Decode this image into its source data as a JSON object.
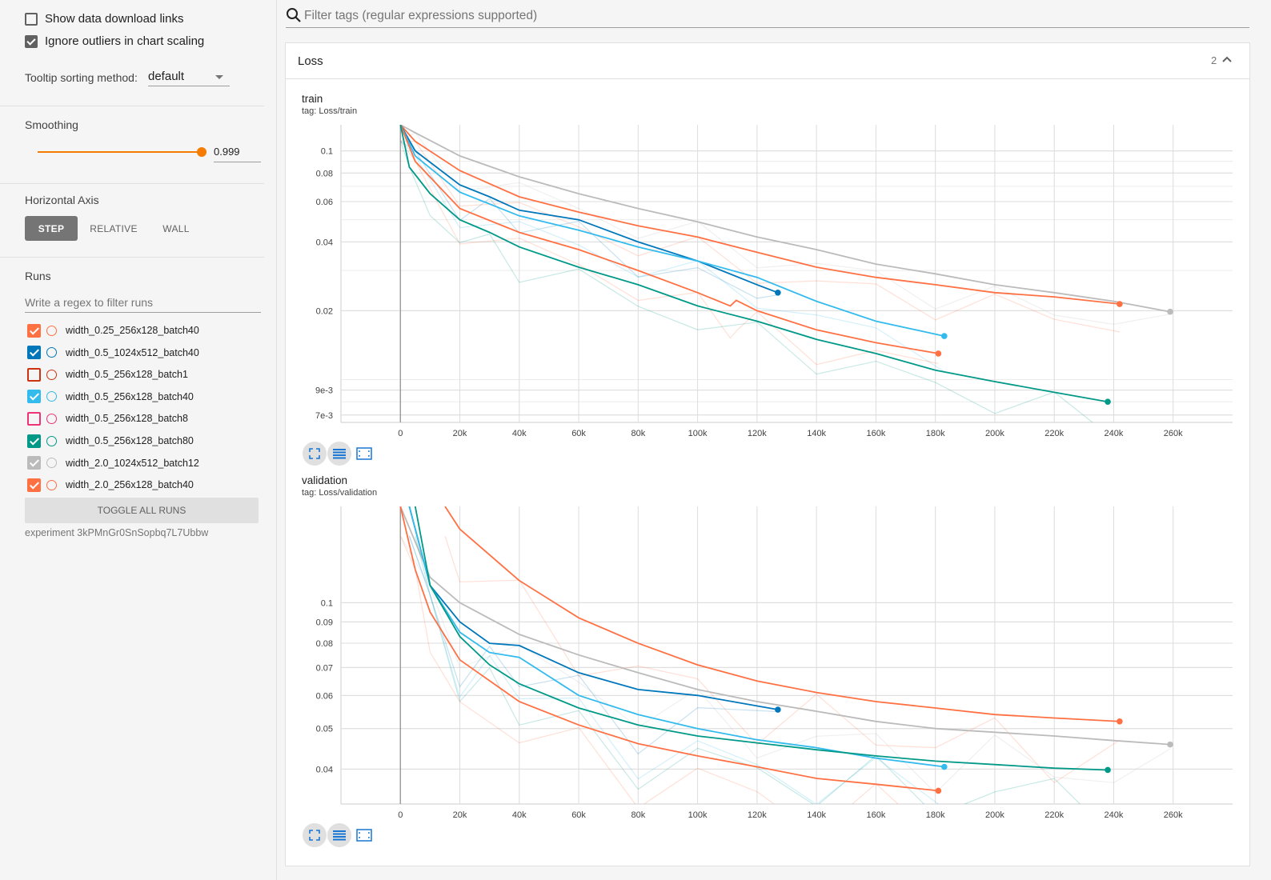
{
  "sidebar": {
    "show_download_links": {
      "label": "Show data download links",
      "checked": false
    },
    "ignore_outliers": {
      "label": "Ignore outliers in chart scaling",
      "checked": true
    },
    "tooltip_sorting_label": "Tooltip sorting method:",
    "tooltip_sorting_value": "default",
    "smoothing_title": "Smoothing",
    "smoothing_value": "0.999",
    "horizontal_axis_title": "Horizontal Axis",
    "axis_buttons": [
      "STEP",
      "RELATIVE",
      "WALL"
    ],
    "runs_title": "Runs",
    "run_filter_placeholder": "Write a regex to filter runs",
    "runs": [
      {
        "name": "width_0.25_256x128_batch40",
        "color": "#ff7043",
        "checked": true
      },
      {
        "name": "width_0.5_1024x512_batch40",
        "color": "#0077bb",
        "checked": true
      },
      {
        "name": "width_0.5_256x128_batch1",
        "color": "#cc3311",
        "checked": false
      },
      {
        "name": "width_0.5_256x128_batch40",
        "color": "#33bbee",
        "checked": true
      },
      {
        "name": "width_0.5_256x128_batch8",
        "color": "#ee3377",
        "checked": false
      },
      {
        "name": "width_0.5_256x128_batch80",
        "color": "#009988",
        "checked": true
      },
      {
        "name": "width_2.0_1024x512_batch12",
        "color": "#bbbbbb",
        "checked": true
      },
      {
        "name": "width_2.0_256x128_batch40",
        "color": "#ff7043",
        "checked": true
      }
    ],
    "toggle_all_label": "TOGGLE ALL RUNS",
    "experiment_label": "experiment 3kPMnGr0SnSopbq7L7Ubbw"
  },
  "main": {
    "filter_placeholder": "Filter tags (regular expressions supported)",
    "card_title": "Loss",
    "card_count": "2"
  },
  "chart_data": [
    {
      "type": "line",
      "title": "train",
      "tag": "tag: Loss/train",
      "x_ticks": [
        "0",
        "20k",
        "40k",
        "60k",
        "80k",
        "100k",
        "120k",
        "140k",
        "160k",
        "180k",
        "200k",
        "220k",
        "240k",
        "260k"
      ],
      "y_ticks": [
        "0.1",
        "0.08",
        "0.06",
        "0.04",
        "0.02",
        "9e-3",
        "7e-3"
      ],
      "y_scale": "log",
      "xlim": [
        -20000,
        280000
      ],
      "ylim": [
        0.0065,
        0.13
      ],
      "series": [
        {
          "color": "#bbbbbb",
          "x": [
            0,
            5000,
            20000,
            40000,
            60000,
            80000,
            100000,
            120000,
            140000,
            160000,
            180000,
            200000,
            220000,
            240000,
            259000
          ],
          "y": [
            0.13,
            0.12,
            0.095,
            0.077,
            0.065,
            0.056,
            0.049,
            0.042,
            0.037,
            0.032,
            0.029,
            0.026,
            0.024,
            0.022,
            0.0198
          ]
        },
        {
          "color": "#ff7043",
          "x": [
            0,
            5000,
            20000,
            40000,
            60000,
            80000,
            100000,
            120000,
            140000,
            160000,
            180000,
            200000,
            220000,
            242000
          ],
          "y": [
            0.13,
            0.11,
            0.082,
            0.063,
            0.054,
            0.047,
            0.042,
            0.036,
            0.031,
            0.028,
            0.026,
            0.024,
            0.023,
            0.0214
          ]
        },
        {
          "color": "#0077bb",
          "x": [
            0,
            5000,
            20000,
            30000,
            40000,
            60000,
            80000,
            100000,
            120000,
            127000
          ],
          "y": [
            0.13,
            0.1,
            0.071,
            0.063,
            0.055,
            0.05,
            0.04,
            0.033,
            0.026,
            0.024
          ]
        },
        {
          "color": "#33bbee",
          "x": [
            0,
            5000,
            20000,
            40000,
            60000,
            80000,
            100000,
            120000,
            140000,
            160000,
            183000
          ],
          "y": [
            0.13,
            0.095,
            0.066,
            0.052,
            0.045,
            0.038,
            0.033,
            0.028,
            0.022,
            0.018,
            0.0155
          ]
        },
        {
          "color": "#ff7043",
          "x": [
            0,
            5000,
            20000,
            40000,
            60000,
            80000,
            100000,
            111000,
            113000,
            120000,
            140000,
            160000,
            181000
          ],
          "y": [
            0.13,
            0.09,
            0.056,
            0.044,
            0.037,
            0.03,
            0.024,
            0.021,
            0.0222,
            0.02,
            0.0165,
            0.0145,
            0.013
          ]
        },
        {
          "color": "#009988",
          "x": [
            0,
            3000,
            10000,
            20000,
            30000,
            40000,
            60000,
            80000,
            100000,
            120000,
            140000,
            160000,
            180000,
            200000,
            220000,
            238000
          ],
          "y": [
            0.13,
            0.085,
            0.065,
            0.05,
            0.044,
            0.038,
            0.031,
            0.026,
            0.021,
            0.018,
            0.015,
            0.013,
            0.011,
            0.0098,
            0.0088,
            0.008
          ]
        }
      ]
    },
    {
      "type": "line",
      "title": "validation",
      "tag": "tag: Loss/validation",
      "x_ticks": [
        "0",
        "20k",
        "40k",
        "60k",
        "80k",
        "100k",
        "120k",
        "140k",
        "160k",
        "180k",
        "200k",
        "220k",
        "240k",
        "260k"
      ],
      "y_ticks": [
        "0.1",
        "0.09",
        "0.08",
        "0.07",
        "0.06",
        "0.05",
        "0.04"
      ],
      "y_scale": "log",
      "xlim": [
        -20000,
        280000
      ],
      "ylim": [
        0.033,
        0.17
      ],
      "series": [
        {
          "color": "#ff7043",
          "x": [
            15000,
            20000,
            40000,
            60000,
            80000,
            100000,
            120000,
            140000,
            160000,
            180000,
            200000,
            220000,
            242000
          ],
          "y": [
            0.17,
            0.15,
            0.113,
            0.092,
            0.08,
            0.071,
            0.065,
            0.061,
            0.058,
            0.056,
            0.054,
            0.053,
            0.052
          ]
        },
        {
          "color": "#bbbbbb",
          "x": [
            0,
            10000,
            20000,
            40000,
            60000,
            80000,
            100000,
            120000,
            140000,
            160000,
            180000,
            200000,
            220000,
            240000,
            259000
          ],
          "y": [
            0.17,
            0.115,
            0.1,
            0.084,
            0.075,
            0.068,
            0.062,
            0.058,
            0.055,
            0.052,
            0.05,
            0.049,
            0.048,
            0.0468,
            0.0458
          ]
        },
        {
          "color": "#0077bb",
          "x": [
            3000,
            10000,
            20000,
            30000,
            40000,
            60000,
            80000,
            100000,
            127000
          ],
          "y": [
            0.17,
            0.11,
            0.09,
            0.08,
            0.079,
            0.068,
            0.062,
            0.06,
            0.0555
          ]
        },
        {
          "color": "#33bbee",
          "x": [
            3000,
            10000,
            20000,
            30000,
            40000,
            60000,
            80000,
            100000,
            120000,
            140000,
            160000,
            183000
          ],
          "y": [
            0.17,
            0.11,
            0.085,
            0.076,
            0.074,
            0.06,
            0.054,
            0.05,
            0.047,
            0.045,
            0.0425,
            0.0405
          ]
        },
        {
          "color": "#009988",
          "x": [
            5000,
            10000,
            20000,
            30000,
            40000,
            60000,
            80000,
            100000,
            120000,
            140000,
            160000,
            180000,
            200000,
            220000,
            238000
          ],
          "y": [
            0.17,
            0.11,
            0.083,
            0.071,
            0.064,
            0.056,
            0.051,
            0.048,
            0.0462,
            0.0445,
            0.043,
            0.0418,
            0.041,
            0.0402,
            0.0398
          ]
        },
        {
          "color": "#ff7043",
          "x": [
            0,
            5000,
            10000,
            20000,
            40000,
            60000,
            80000,
            100000,
            120000,
            140000,
            160000,
            181000
          ],
          "y": [
            0.17,
            0.12,
            0.095,
            0.073,
            0.058,
            0.051,
            0.046,
            0.043,
            0.0405,
            0.038,
            0.0368,
            0.0355
          ]
        }
      ]
    }
  ]
}
